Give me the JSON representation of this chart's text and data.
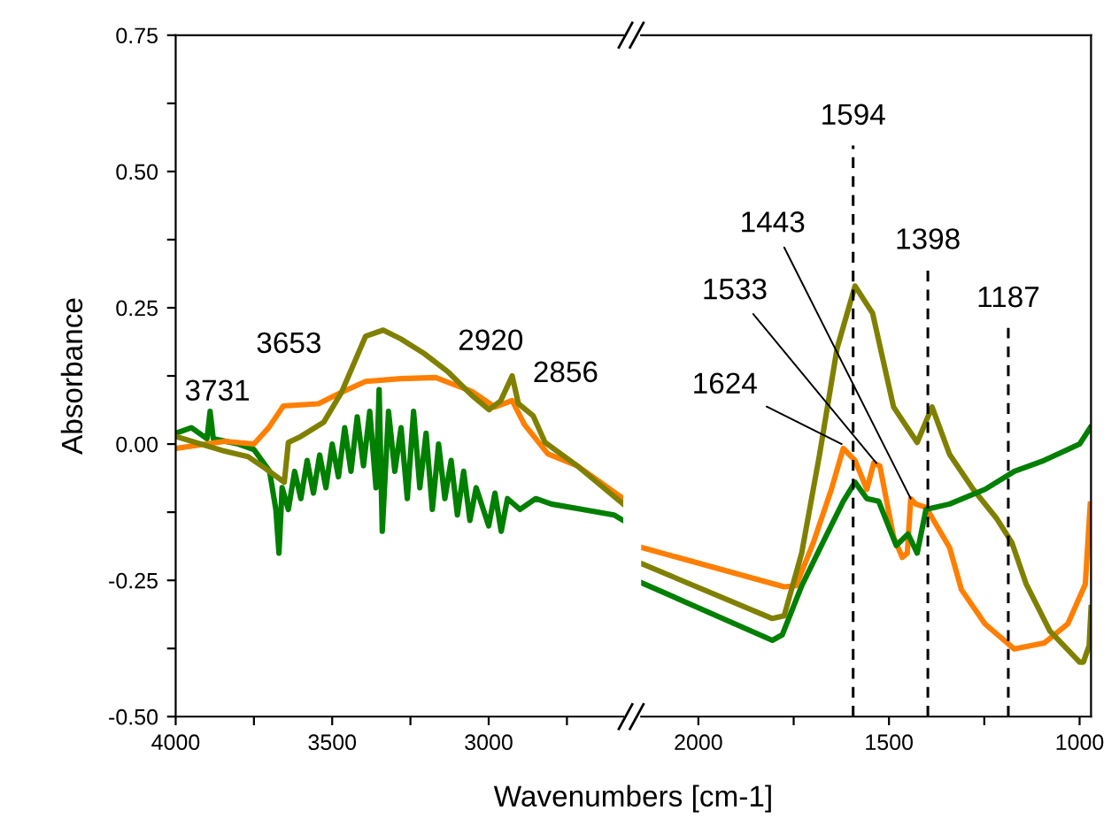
{
  "chart_data": [
    {
      "type": "line",
      "xlabel": "Wavenumbers [cm-1]",
      "ylabel": "Absorbance",
      "grid": false,
      "xlim": [
        4000,
        2570
      ],
      "ylim": [
        -0.5,
        0.75
      ],
      "xticks": [
        4000,
        {
          "value": 3750,
          "label": null
        },
        3500,
        {
          "value": 3250,
          "label": null
        },
        3000,
        {
          "value": 2750,
          "label": null
        }
      ],
      "yticks": [
        {
          "value": -0.5,
          "label": "-0.50"
        },
        {
          "value": -0.375,
          "label": null
        },
        {
          "value": -0.25,
          "label": "-0.25"
        },
        {
          "value": -0.125,
          "label": null
        },
        {
          "value": 0,
          "label": "0.00"
        },
        {
          "value": 0.125,
          "label": null
        },
        {
          "value": 0.25,
          "label": "0.25"
        },
        {
          "value": 0.375,
          "label": null
        },
        {
          "value": 0.5,
          "label": "0.50"
        },
        {
          "value": 0.625,
          "label": null
        },
        {
          "value": 0.75,
          "label": "0.75"
        }
      ],
      "annotations": [
        {
          "text": "3731",
          "x": 3731,
          "y": 0.0
        },
        "3653",
        {
          "text": "2920",
          "x": 2920,
          "y": 0.125
        },
        {
          "text": "2856",
          "x": 2856,
          "y": 0.05
        }
      ],
      "series": [
        {
          "color": "#007f00",
          "x": [
            4000,
            3950,
            3900,
            3890,
            3880,
            3800,
            3750,
            3700,
            3680,
            3670,
            3660,
            3640,
            3620,
            3600,
            3580,
            3560,
            3540,
            3520,
            3500,
            3480,
            3460,
            3440,
            3420,
            3400,
            3380,
            3360,
            3350,
            3340,
            3320,
            3300,
            3280,
            3260,
            3240,
            3220,
            3200,
            3180,
            3160,
            3140,
            3120,
            3100,
            3080,
            3060,
            3040,
            3000,
            2980,
            2960,
            2940,
            2900,
            2850,
            2800,
            2700,
            2600,
            2570
          ],
          "values": [
            0.02,
            0.03,
            0.01,
            0.06,
            0.01,
            0.0,
            -0.01,
            -0.05,
            -0.12,
            -0.2,
            -0.08,
            -0.12,
            -0.05,
            -0.1,
            -0.03,
            -0.09,
            -0.02,
            -0.08,
            0.0,
            -0.06,
            0.03,
            -0.05,
            0.05,
            -0.04,
            0.06,
            -0.08,
            0.1,
            -0.16,
            0.06,
            -0.05,
            0.03,
            -0.1,
            0.06,
            -0.08,
            0.02,
            -0.12,
            0.0,
            -0.1,
            -0.03,
            -0.13,
            -0.05,
            -0.14,
            -0.08,
            -0.15,
            -0.09,
            -0.16,
            -0.1,
            -0.12,
            -0.1,
            -0.11,
            -0.12,
            -0.13,
            -0.14
          ]
        },
        {
          "color": "#ff7f00",
          "x": [
            4000,
            3844,
            3750,
            3703,
            3656,
            3544,
            3470,
            3393,
            3281,
            3169,
            3055,
            2980,
            2925,
            2886,
            2811,
            2717,
            2570
          ],
          "values": [
            -0.008,
            0.005,
            0.0,
            0.03,
            0.07,
            0.074,
            0.095,
            0.115,
            0.12,
            0.122,
            0.097,
            0.068,
            0.08,
            0.036,
            -0.018,
            -0.04,
            -0.1
          ]
        },
        {
          "color": "#808000",
          "x": [
            4000,
            3844,
            3769,
            3713,
            3653,
            3640,
            3600,
            3527,
            3470,
            3393,
            3337,
            3281,
            3206,
            3131,
            3055,
            2999,
            2962,
            2925,
            2905,
            2858,
            2820,
            2717,
            2570
          ],
          "values": [
            0.014,
            -0.013,
            -0.023,
            -0.045,
            -0.07,
            0.003,
            0.014,
            0.04,
            0.095,
            0.198,
            0.209,
            0.193,
            0.166,
            0.133,
            0.09,
            0.063,
            0.079,
            0.125,
            0.074,
            0.052,
            0.003,
            -0.04,
            -0.11
          ]
        }
      ]
    },
    {
      "type": "line",
      "grid": false,
      "tick_labels": "x",
      "xlim": [
        2150,
        970
      ],
      "ylim": [
        -0.5,
        0.75
      ],
      "xticks": [
        2000,
        {
          "value": 1750,
          "label": null
        },
        1500,
        {
          "value": 1250,
          "label": null
        },
        1000
      ],
      "annotations": [
        {
          "text": "1624",
          "x": 1624,
          "y": 0.0
        },
        {
          "text": "1533",
          "x": 1533,
          "y": -0.035
        },
        {
          "text": "1443",
          "x": 1443,
          "y": -0.1
        }
      ],
      "ref_lines": [
        {
          "axis": "x",
          "value": 1594,
          "label": "1594",
          "color": "#000000",
          "line_style": "dashed"
        },
        {
          "axis": "x",
          "value": 1398,
          "label": "1398",
          "color": "#000000",
          "line_style": "dashed"
        },
        {
          "axis": "x",
          "value": 1187,
          "label": "1187",
          "color": "#000000",
          "line_style": "dashed"
        }
      ],
      "series": [
        {
          "color": "#ff7f00",
          "x": [
            2147,
            1775,
            1744,
            1698,
            1651,
            1620,
            1589,
            1558,
            1540,
            1524,
            1488,
            1465,
            1452,
            1443,
            1430,
            1403,
            1341,
            1310,
            1248,
            1171,
            1093,
            1031,
            985,
            972
          ],
          "values": [
            -0.19,
            -0.262,
            -0.26,
            -0.18,
            -0.083,
            -0.008,
            -0.03,
            -0.083,
            -0.035,
            -0.04,
            -0.17,
            -0.208,
            -0.2,
            -0.1,
            -0.11,
            -0.116,
            -0.19,
            -0.267,
            -0.33,
            -0.376,
            -0.365,
            -0.33,
            -0.257,
            -0.11
          ]
        },
        {
          "color": "#808000",
          "x": [
            2147,
            1806,
            1775,
            1729,
            1682,
            1636,
            1589,
            1543,
            1488,
            1426,
            1387,
            1341,
            1279,
            1217,
            1178,
            1140,
            1078,
            1000,
            990,
            975,
            970
          ],
          "values": [
            -0.22,
            -0.32,
            -0.315,
            -0.2,
            -0.019,
            0.176,
            0.29,
            0.24,
            0.068,
            0.003,
            0.068,
            -0.019,
            -0.083,
            -0.137,
            -0.18,
            -0.257,
            -0.343,
            -0.4,
            -0.4,
            -0.37,
            -0.3
          ]
        },
        {
          "color": "#007f00",
          "x": [
            2147,
            1806,
            1780,
            1729,
            1666,
            1620,
            1589,
            1558,
            1527,
            1481,
            1450,
            1426,
            1403,
            1341,
            1248,
            1171,
            1093,
            1000,
            972
          ],
          "values": [
            -0.255,
            -0.36,
            -0.35,
            -0.26,
            -0.17,
            -0.105,
            -0.07,
            -0.1,
            -0.105,
            -0.186,
            -0.165,
            -0.2,
            -0.12,
            -0.11,
            -0.083,
            -0.05,
            -0.03,
            0.0,
            0.03
          ]
        }
      ]
    }
  ]
}
